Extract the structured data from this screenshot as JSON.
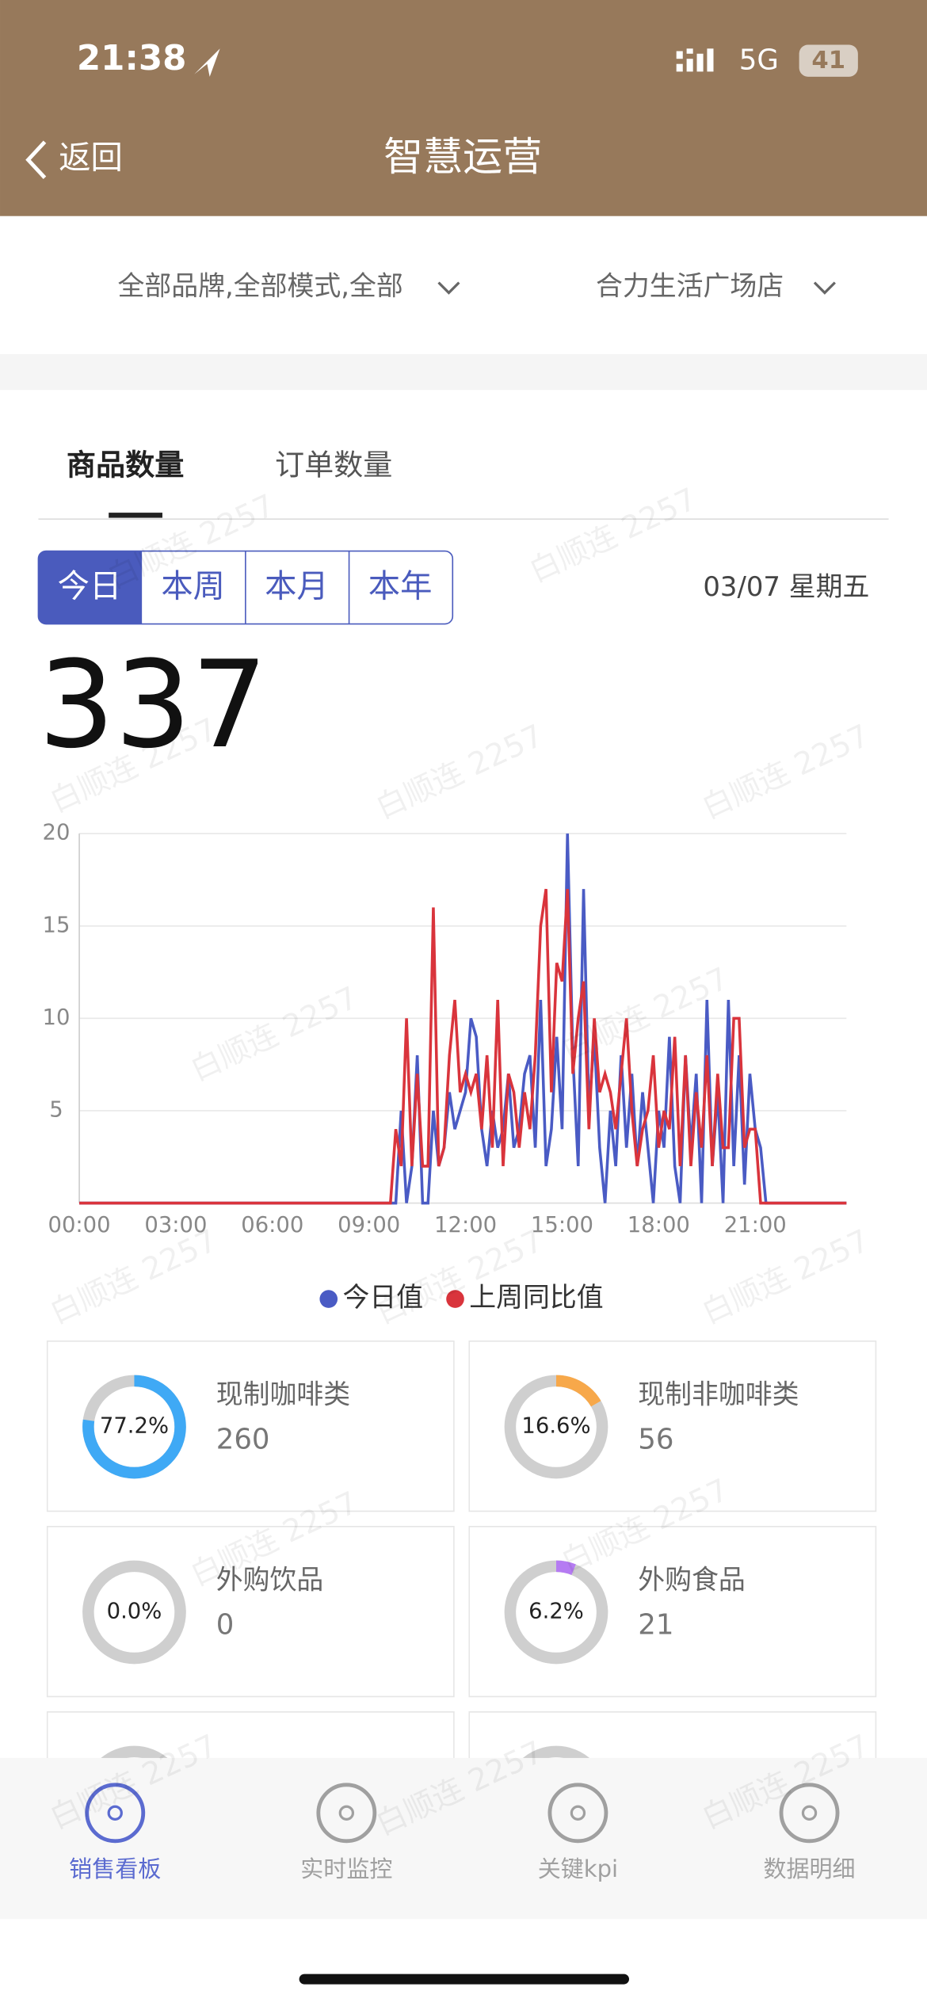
{
  "status": {
    "time": "21:38",
    "network": "5G",
    "battery": "41"
  },
  "nav": {
    "back": "返回",
    "title": "智慧运营"
  },
  "filters": {
    "brand": "全部品牌,全部模式,全部",
    "store": "合力生活广场店"
  },
  "tabs": [
    "商品数量",
    "订单数量"
  ],
  "periods": [
    "今日",
    "本周",
    "本月",
    "本年"
  ],
  "date": "03/07 星期五",
  "total": 337,
  "watermark": "白顺连 2257",
  "chart_data": {
    "type": "line",
    "x": [
      0,
      10,
      20,
      30,
      40,
      50,
      60,
      70,
      80,
      90,
      100,
      110,
      120,
      130,
      140,
      150,
      160,
      170,
      180,
      190,
      200,
      210,
      220,
      230,
      240,
      250,
      260,
      270,
      280,
      290,
      300,
      310,
      320,
      330,
      340,
      350,
      360,
      370,
      380,
      390,
      400,
      410,
      420,
      430,
      440,
      450,
      460,
      470,
      480,
      490,
      500,
      510,
      520,
      530,
      540,
      550,
      560,
      570,
      580,
      590,
      600,
      610,
      620,
      630,
      640,
      650,
      660,
      670,
      680,
      690,
      700,
      710,
      720,
      730,
      740,
      750,
      760,
      770,
      780,
      790,
      800,
      810,
      820,
      830,
      840,
      850,
      860,
      870,
      880,
      890,
      900,
      910,
      920,
      930,
      940,
      950,
      960,
      970,
      980,
      990,
      1000,
      1010,
      1020,
      1030,
      1040,
      1050,
      1060,
      1070,
      1080,
      1090,
      1100,
      1110,
      1120,
      1130,
      1140,
      1150,
      1160,
      1170,
      1180,
      1190,
      1200,
      1210,
      1220,
      1230,
      1240,
      1250,
      1260,
      1270,
      1280,
      1290,
      1300,
      1310,
      1320,
      1330,
      1340,
      1350,
      1360,
      1370,
      1380,
      1390,
      1400,
      1410,
      1420,
      1430
    ],
    "series": [
      {
        "name": "今日值",
        "color": "#4a5bc4",
        "values": [
          0,
          0,
          0,
          0,
          0,
          0,
          0,
          0,
          0,
          0,
          0,
          0,
          0,
          0,
          0,
          0,
          0,
          0,
          0,
          0,
          0,
          0,
          0,
          0,
          0,
          0,
          0,
          0,
          0,
          0,
          0,
          0,
          0,
          0,
          0,
          0,
          0,
          0,
          0,
          0,
          0,
          0,
          0,
          0,
          0,
          0,
          0,
          0,
          0,
          0,
          0,
          0,
          0,
          0,
          0,
          0,
          0,
          0,
          0,
          0,
          5,
          0,
          2,
          8,
          0,
          0,
          5,
          2,
          3,
          6,
          4,
          5,
          6,
          10,
          9,
          4,
          2,
          5,
          3,
          4,
          7,
          3,
          4,
          7,
          8,
          3,
          11,
          2,
          4,
          9,
          4,
          20,
          8,
          2,
          17,
          5,
          9,
          3,
          0,
          5,
          2,
          8,
          3,
          7,
          2,
          6,
          3,
          0,
          5,
          3,
          9,
          2,
          0,
          8,
          3,
          7,
          0,
          11,
          2,
          6,
          0,
          11,
          2,
          8,
          1,
          7,
          4,
          3,
          0,
          0,
          0,
          0,
          0,
          0,
          0,
          0,
          0,
          0,
          0,
          0,
          0,
          0,
          0,
          0
        ]
      },
      {
        "name": "上周同比值",
        "color": "#d9343c",
        "values": [
          0,
          0,
          0,
          0,
          0,
          0,
          0,
          0,
          0,
          0,
          0,
          0,
          0,
          0,
          0,
          0,
          0,
          0,
          0,
          0,
          0,
          0,
          0,
          0,
          0,
          0,
          0,
          0,
          0,
          0,
          0,
          0,
          0,
          0,
          0,
          0,
          0,
          0,
          0,
          0,
          0,
          0,
          0,
          0,
          0,
          0,
          0,
          0,
          0,
          0,
          0,
          0,
          0,
          0,
          0,
          0,
          0,
          0,
          0,
          4,
          2,
          10,
          2,
          7,
          2,
          2,
          16,
          2,
          3,
          8,
          11,
          6,
          7,
          6,
          7,
          4,
          8,
          3,
          11,
          2,
          7,
          6,
          3,
          6,
          4,
          8,
          15,
          17,
          6,
          13,
          12,
          17,
          7,
          10,
          12,
          4,
          10,
          6,
          7,
          6,
          4,
          7,
          10,
          5,
          2,
          4,
          5,
          8,
          3,
          5,
          4,
          9,
          2,
          8,
          2,
          6,
          3,
          8,
          2,
          7,
          3,
          3,
          10,
          10,
          3,
          4,
          4,
          0,
          0,
          0,
          0,
          0,
          0,
          0,
          0,
          0,
          0,
          0,
          0,
          0,
          0,
          0,
          0,
          0
        ]
      }
    ],
    "xlim": [
      0,
      1430
    ],
    "xticks": [
      {
        "value": 0,
        "label": "00:00"
      },
      {
        "value": 180,
        "label": "03:00"
      },
      {
        "value": 360,
        "label": "06:00"
      },
      {
        "value": 540,
        "label": "09:00"
      },
      {
        "value": 720,
        "label": "12:00"
      },
      {
        "value": 900,
        "label": "15:00"
      },
      {
        "value": 1080,
        "label": "18:00"
      },
      {
        "value": 1260,
        "label": "21:00"
      }
    ],
    "ylim": [
      0,
      20
    ],
    "yticks": [
      5,
      10,
      15,
      20
    ],
    "grid": true
  },
  "cards": [
    {
      "name": "现制咖啡类",
      "value": 77.2,
      "value_label": "77.2%",
      "count": 260,
      "color": "#3fa9f5"
    },
    {
      "name": "现制非咖啡类",
      "value": 16.6,
      "value_label": "16.6%",
      "count": 56,
      "color": "#f7a84a"
    },
    {
      "name": "外购饮品",
      "value": 0,
      "value_label": "0.0%",
      "count": 0,
      "color": "#b57bf2"
    },
    {
      "name": "外购食品",
      "value": 6.2,
      "value_label": "6.2%",
      "count": 21,
      "color": "#b57bf2"
    }
  ],
  "bottom_nav": [
    "销售看板",
    "实时监控",
    "关键kpi",
    "数据明细"
  ]
}
